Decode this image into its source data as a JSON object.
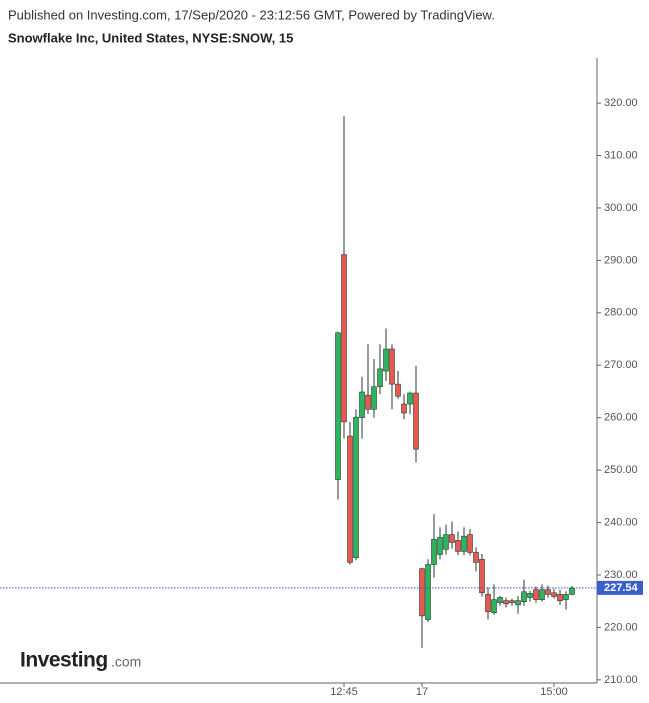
{
  "header": {
    "published": "Published on Investing.com, 17/Sep/2020 - 23:12:56 GMT, Powered by TradingView.",
    "symbol": "Snowflake Inc, United States, NYSE:SNOW, 15"
  },
  "logo": {
    "brand": "Investing",
    "suffix": ".com"
  },
  "chart_data": {
    "type": "candlestick",
    "categories": [
      null,
      "12:45",
      null,
      null,
      null,
      null,
      null,
      null,
      null,
      null,
      null,
      null,
      null,
      null,
      "17",
      null,
      null,
      null,
      null,
      null,
      null,
      null,
      null,
      null,
      null,
      null,
      null,
      null,
      null,
      null,
      null,
      null,
      null,
      null,
      null,
      null,
      "15:00",
      null,
      null,
      null
    ],
    "up_color": "#2db55d",
    "down_color": "#e8594f",
    "wick_color": "#2b3a33",
    "series": [
      {
        "name": "SNOW",
        "open": [
          248.2,
          291.1,
          256.5,
          233.3,
          260.0,
          264.3,
          261.6,
          265.9,
          268.9,
          273.1,
          266.4,
          262.6,
          262.6,
          264.7,
          231.2,
          221.5,
          232.0,
          233.9,
          234.9,
          237.7,
          236.6,
          234.5,
          237.7,
          234.3,
          233.0,
          226.3,
          222.8,
          224.7,
          225.1,
          225.1,
          224.3,
          224.9,
          225.7,
          227.2,
          225.3,
          227.2,
          226.6,
          226.3,
          225.3,
          226.3
        ],
        "high": [
          276.4,
          317.5,
          259.2,
          261.6,
          267.8,
          274.0,
          271.2,
          274.0,
          277.0,
          274.0,
          268.9,
          264.5,
          265.0,
          269.9,
          231.4,
          233.0,
          241.6,
          239.1,
          239.6,
          240.2,
          238.3,
          239.1,
          238.7,
          235.3,
          234.0,
          227.6,
          228.2,
          226.0,
          225.7,
          225.5,
          226.0,
          229.1,
          227.0,
          227.8,
          228.2,
          228.0,
          227.4,
          227.2,
          226.9,
          227.9
        ],
        "low": [
          244.4,
          256.0,
          232.0,
          232.8,
          256.0,
          260.7,
          260.0,
          264.5,
          267.0,
          261.6,
          263.6,
          259.7,
          260.7,
          251.5,
          216.1,
          221.0,
          229.5,
          233.0,
          233.9,
          235.0,
          233.8,
          233.8,
          233.8,
          230.7,
          225.9,
          221.5,
          222.4,
          224.1,
          223.8,
          224.1,
          222.6,
          224.1,
          224.9,
          224.7,
          224.9,
          225.7,
          225.5,
          224.3,
          223.4,
          226.1
        ],
        "close": [
          276.2,
          259.2,
          232.4,
          260.1,
          264.9,
          261.6,
          265.9,
          269.3,
          273.1,
          266.4,
          264.1,
          260.9,
          264.7,
          254.0,
          222.2,
          232.0,
          236.8,
          237.2,
          237.7,
          236.2,
          234.5,
          237.4,
          234.3,
          232.4,
          226.6,
          223.0,
          225.3,
          225.7,
          224.5,
          224.7,
          225.1,
          226.8,
          226.5,
          225.3,
          227.2,
          226.3,
          225.9,
          225.1,
          226.3,
          227.5
        ]
      }
    ],
    "last_price": 227.54,
    "last_price_color": "#3a5fcd",
    "ylim": [
      209.4,
      328.6
    ],
    "yticks": [
      {
        "value": 210,
        "label": "210.00"
      },
      {
        "value": 220,
        "label": "220.00"
      },
      {
        "value": 230,
        "label": "230.00"
      },
      {
        "value": 240,
        "label": "240.00"
      },
      {
        "value": 250,
        "label": "250.00"
      },
      {
        "value": 260,
        "label": "260.00"
      },
      {
        "value": 270,
        "label": "270.00"
      },
      {
        "value": 280,
        "label": "280.00"
      },
      {
        "value": 290,
        "label": "290.00"
      },
      {
        "value": 300,
        "label": "300.00"
      },
      {
        "value": 310,
        "label": "310.00"
      },
      {
        "value": 320,
        "label": "320.00"
      }
    ]
  }
}
